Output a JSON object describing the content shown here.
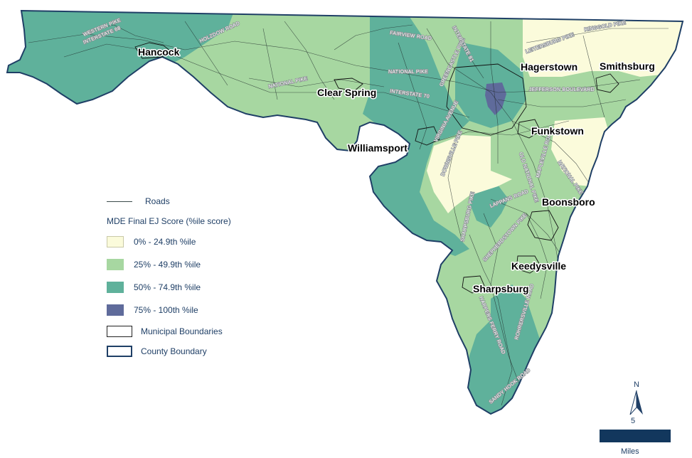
{
  "colors": {
    "q1": "#fbfbdb",
    "q2": "#a7d7a1",
    "q3": "#5fb19b",
    "q4": "#5f6b9b",
    "county_boundary": "#1f3f66",
    "road": "#1f2a2a",
    "legend_text": "#1f3f66"
  },
  "towns": [
    {
      "name": "Hancock"
    },
    {
      "name": "Clear Spring"
    },
    {
      "name": "Williamsport"
    },
    {
      "name": "Hagerstown"
    },
    {
      "name": "Smithsburg"
    },
    {
      "name": "Funkstown"
    },
    {
      "name": "Boonsboro"
    },
    {
      "name": "Keedysville"
    },
    {
      "name": "Sharpsburg"
    }
  ],
  "road_labels": [
    "WESTERN PIKE",
    "INTERSTATE 68",
    "HOLZDOW ROAD",
    "NATIONAL PIKE",
    "FAIRVIEW ROAD",
    "NATIONAL PIKE",
    "INTERSTATE 70",
    "GREENCASTLE PIKE",
    "INTERSTATE 81",
    "LEITERSBURG PIKE",
    "RINGGOLD PIKE",
    "JEFFERSON BOULEVARD",
    "VIRGINIA AVENUE",
    "DOWNSVILLE PIKE",
    "OLD NATIONAL PIKE",
    "MAPLEVILLE ROAD",
    "NATIONAL PIKE",
    "LAPPANS ROAD",
    "SHARPSBURG PIKE",
    "SHEPHERDSTOWN PIKE",
    "HARPERS FERRY ROAD",
    "ROHRERSVILLE ROAD",
    "SANDY HOOK ROAD"
  ],
  "legend": {
    "roads_label": "Roads",
    "title": "MDE Final EJ Score (%ile score)",
    "classes": [
      {
        "label": "0% - 24.9th %ile",
        "color": "#fbfbdb"
      },
      {
        "label": "25% - 49.9th %ile",
        "color": "#a7d7a1"
      },
      {
        "label": "50% - 74.9th %ile",
        "color": "#5fb19b"
      },
      {
        "label": "75% - 100th %ile",
        "color": "#5f6b9b"
      }
    ],
    "municipal_label": "Municipal Boundaries",
    "county_label": "County Boundary"
  },
  "north_arrow": {
    "letter": "N"
  },
  "scale": {
    "value": "5",
    "units": "Miles"
  }
}
